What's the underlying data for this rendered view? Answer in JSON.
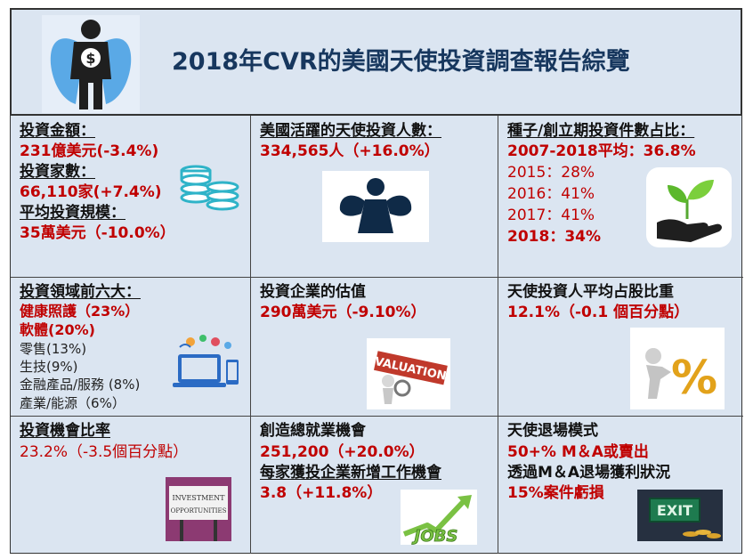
{
  "header": {
    "title": "2018年CVR的美國天使投資調查報告綜覽"
  },
  "cells": {
    "invest_amount": {
      "label1": "投資金額：",
      "value1": "231億美元(-3.4%)",
      "label2": "投資家數：",
      "value2": "66,110家(+7.4%)",
      "label3": "平均投資規模：",
      "value3": "35萬美元（-10.0%）",
      "icon": "coins-icon"
    },
    "active_investors": {
      "label": "美國活躍的天使投資人數：",
      "value": "334,565人（+16.0%）",
      "icon": "angel-icon"
    },
    "seed_share": {
      "label": "種子/創立期投資件數占比：",
      "avg": "2007-2018平均：36.8%",
      "y2015": "2015：28%",
      "y2016": "2016：41%",
      "y2017": "2017：41%",
      "y2018": "2018：34%",
      "icon": "seedling-hand-icon"
    },
    "top_sectors": {
      "label": "投資領域前六大：",
      "s1": "健康照護（23%）",
      "s2": "軟體(20%)",
      "s3": "零售(13%)",
      "s4": "生技(9%)",
      "s5": "金融產品/服務 (8%)",
      "s6": "產業/能源（6%）",
      "icon": "devices-icon"
    },
    "valuation": {
      "label": "投資企業的估值",
      "value": "290萬美元（-9.10%）",
      "icon_text": "VALUATION",
      "icon": "valuation-icon"
    },
    "equity_share": {
      "label": "天使投資人平均占股比重",
      "value": "12.1%（-0.1 個百分點）",
      "icon": "percent-push-icon"
    },
    "opportunity": {
      "label": "投資機會比率",
      "value": "23.2%（-3.5個百分點）",
      "icon_text1": "INVESTMENT",
      "icon_text2": "OPPORTUNITIES",
      "icon": "investment-sign-icon"
    },
    "jobs": {
      "label": "創造總就業機會",
      "value": "251,200（+20.0%）",
      "label2": "每家獲投企業新增工作機會",
      "value2": "3.8（+11.8%）",
      "icon_text": "JOBS",
      "icon": "jobs-arrow-icon"
    },
    "exit": {
      "label": "天使退場模式",
      "value": "50+% M＆A或賣出",
      "label2": "透過M＆A退場獲利狀況",
      "value2": "15%案件虧損",
      "icon_text": "EXIT",
      "icon": "exit-sign-icon"
    }
  }
}
